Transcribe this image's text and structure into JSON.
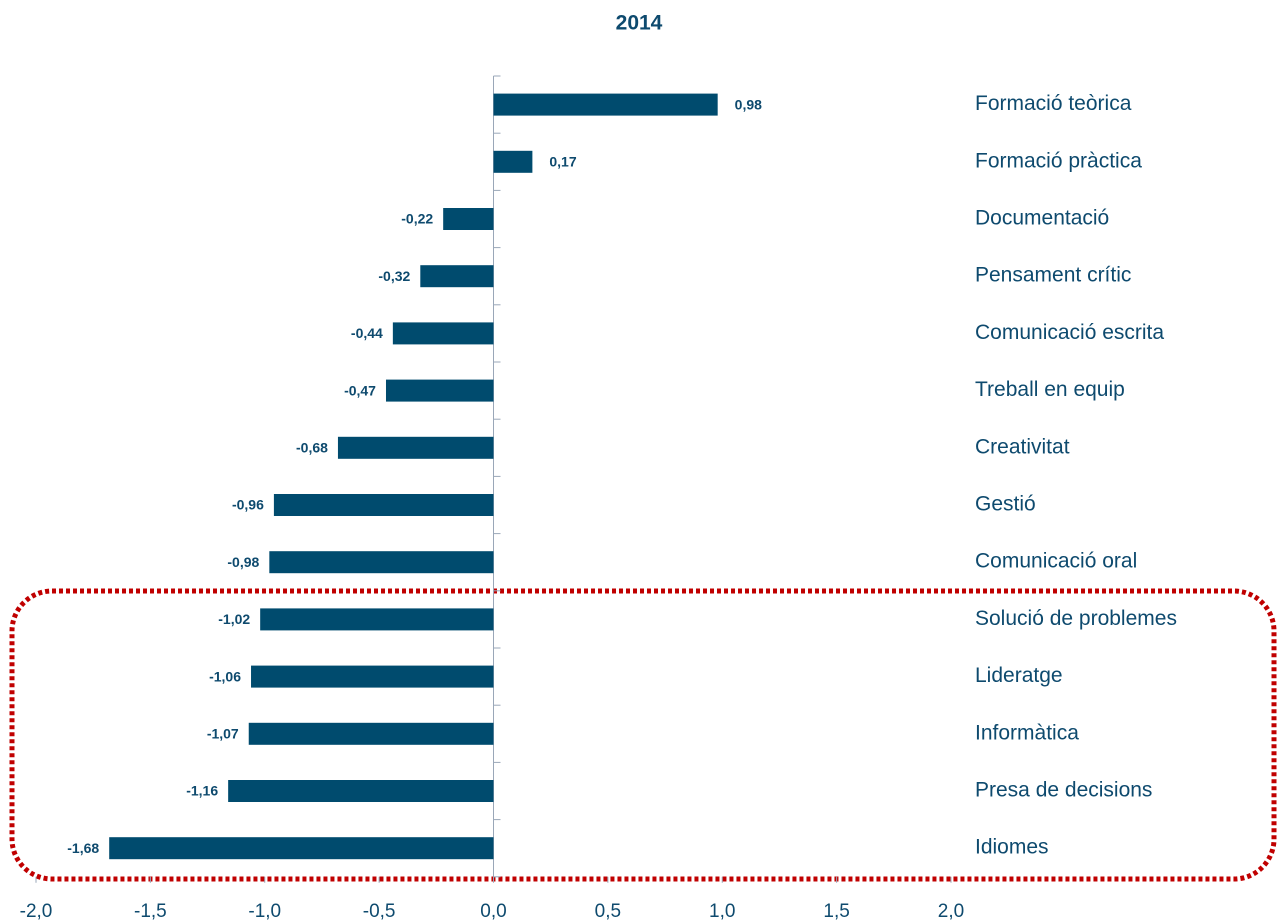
{
  "chart_data": {
    "type": "hbar",
    "title": "2014",
    "categories": [
      "Formació teòrica",
      "Formació pràctica",
      "Documentació",
      "Pensament crític",
      "Comunicació escrita",
      "Treball en equip",
      "Creativitat",
      "Gestió",
      "Comunicació oral",
      "Solució de problemes",
      "Lideratge",
      "Informàtica",
      "Presa de decisions",
      "Idiomes"
    ],
    "values": [
      0.98,
      0.17,
      -0.22,
      -0.32,
      -0.44,
      -0.47,
      -0.68,
      -0.96,
      -0.98,
      -1.02,
      -1.06,
      -1.07,
      -1.16,
      -1.68
    ],
    "value_labels": [
      "0,98",
      "0,17",
      "-0,22",
      "-0,32",
      "-0,44",
      "-0,47",
      "-0,68",
      "-0,96",
      "-0,98",
      "-1,02",
      "-1,06",
      "-1,07",
      "-1,16",
      "-1,68"
    ],
    "color": "#004b6e",
    "xlim": [
      -2.0,
      2.0
    ],
    "xticks": [
      {
        "value": -2.0,
        "label": "-2,0"
      },
      {
        "value": -1.5,
        "label": "-1,5"
      },
      {
        "value": -1.0,
        "label": "-1,0"
      },
      {
        "value": -0.5,
        "label": "-0,5"
      },
      {
        "value": 0.0,
        "label": "0,0"
      },
      {
        "value": 0.5,
        "label": "0,5"
      },
      {
        "value": 1.0,
        "label": "1,0"
      },
      {
        "value": 1.5,
        "label": "1,5"
      },
      {
        "value": 2.0,
        "label": "2,0"
      }
    ]
  }
}
